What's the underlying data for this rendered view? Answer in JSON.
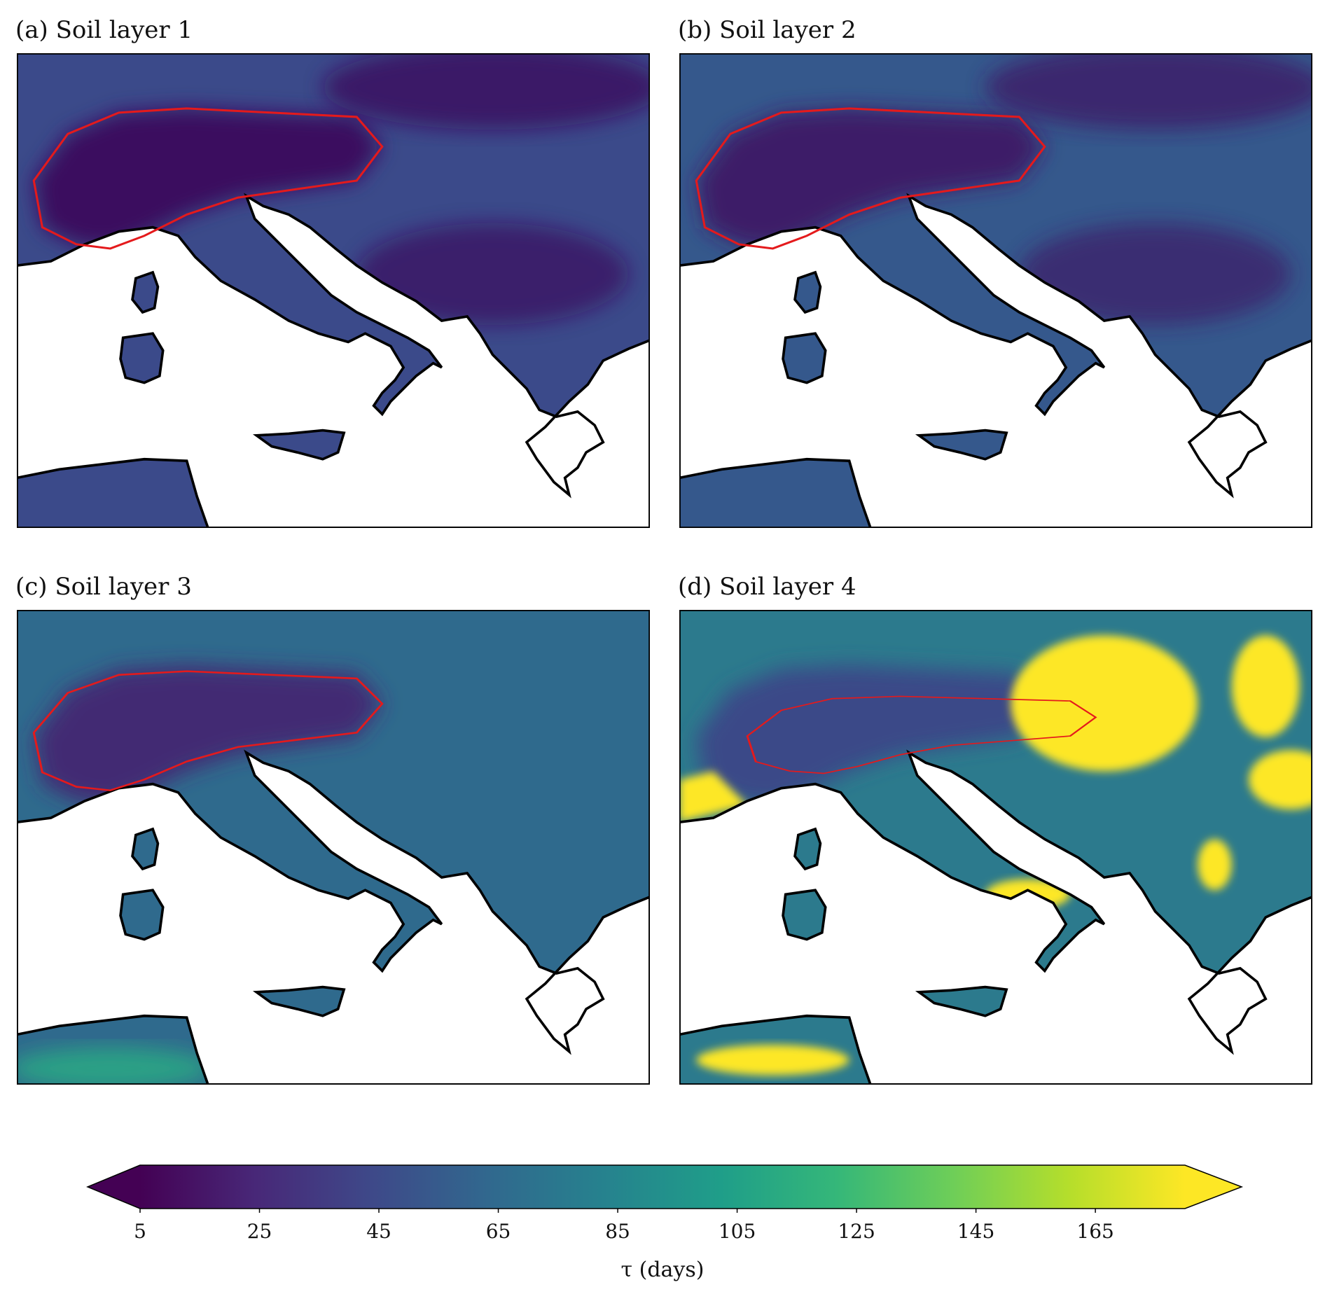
{
  "panels": [
    {
      "title": "(a) Soil layer 1"
    },
    {
      "title": "(b) Soil layer 2"
    },
    {
      "title": "(c) Soil layer 3"
    },
    {
      "title": "(d) Soil layer 4"
    }
  ],
  "colorbar": {
    "colormap": "viridis",
    "lim": [
      5,
      180
    ],
    "ticks": [
      5,
      25,
      45,
      65,
      85,
      105,
      125,
      145,
      165
    ],
    "label": "τ (days)",
    "extend": "both"
  }
}
